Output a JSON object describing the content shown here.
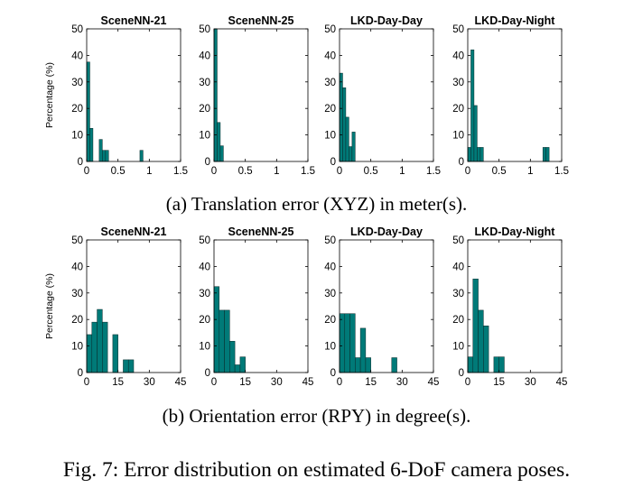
{
  "captions": {
    "a": "(a) Translation error (XYZ) in meter(s).",
    "b": "(b) Orientation error (RPY) in degree(s).",
    "figure": "Fig. 7: Error distribution on estimated 6-DoF camera poses."
  },
  "style": {
    "bar_color": "#007a78"
  },
  "chart_data": [
    {
      "type": "bar",
      "title": "SceneNN-21",
      "ylabel": "Percentage (%)",
      "xlabel": "",
      "xlim": [
        0,
        1.5
      ],
      "ylim": [
        0,
        50
      ],
      "xticks": [
        0,
        0.5,
        1,
        1.5
      ],
      "xtick_labels": [
        "0",
        "0.5",
        "1",
        "1.5"
      ],
      "yticks": [
        0,
        10,
        20,
        30,
        40,
        50
      ],
      "ytick_labels": [
        "0",
        "10",
        "20",
        "30",
        "40",
        "50"
      ],
      "bin_width": 0.05,
      "x": [
        0.025,
        0.075,
        0.225,
        0.275,
        0.325,
        0.875
      ],
      "values": [
        37.5,
        12.5,
        8.3,
        4.2,
        4.2,
        4.2
      ]
    },
    {
      "type": "bar",
      "title": "SceneNN-25",
      "ylabel": "",
      "xlabel": "",
      "xlim": [
        0,
        1.5
      ],
      "ylim": [
        0,
        50
      ],
      "xticks": [
        0,
        0.5,
        1,
        1.5
      ],
      "xtick_labels": [
        "0",
        "0.5",
        "1",
        "1.5"
      ],
      "yticks": [
        0,
        10,
        20,
        30,
        40,
        50
      ],
      "ytick_labels": [
        "0",
        "10",
        "20",
        "30",
        "40",
        "50"
      ],
      "bin_width": 0.05,
      "x": [
        0.025,
        0.075,
        0.125
      ],
      "values": [
        50,
        14.7,
        5.9
      ]
    },
    {
      "type": "bar",
      "title": "LKD-Day-Day",
      "ylabel": "",
      "xlabel": "",
      "xlim": [
        0,
        1.5
      ],
      "ylim": [
        0,
        50
      ],
      "xticks": [
        0,
        0.5,
        1,
        1.5
      ],
      "xtick_labels": [
        "0",
        "0.5",
        "1",
        "1.5"
      ],
      "yticks": [
        0,
        10,
        20,
        30,
        40,
        50
      ],
      "ytick_labels": [
        "0",
        "10",
        "20",
        "30",
        "40",
        "50"
      ],
      "bin_width": 0.05,
      "x": [
        0.025,
        0.075,
        0.125,
        0.175,
        0.225,
        0.275
      ],
      "values": [
        33.3,
        27.8,
        16.7,
        5.6,
        11.1,
        0
      ]
    },
    {
      "type": "bar",
      "title": "LKD-Day-Night",
      "ylabel": "",
      "xlabel": "",
      "xlim": [
        0,
        1.5
      ],
      "ylim": [
        0,
        50
      ],
      "xticks": [
        0,
        0.5,
        1,
        1.5
      ],
      "xtick_labels": [
        "0",
        "0.5",
        "1",
        "1.5"
      ],
      "yticks": [
        0,
        10,
        20,
        30,
        40,
        50
      ],
      "ytick_labels": [
        "0",
        "10",
        "20",
        "30",
        "40",
        "50"
      ],
      "bin_width": 0.05,
      "x": [
        0.025,
        0.075,
        0.125,
        0.175,
        0.225,
        1.225,
        1.275
      ],
      "values": [
        5.3,
        42.1,
        21.1,
        5.3,
        5.3,
        5.3,
        5.3
      ]
    },
    {
      "type": "bar",
      "title": "SceneNN-21",
      "ylabel": "Percentage (%)",
      "xlabel": "",
      "xlim": [
        0,
        45
      ],
      "ylim": [
        0,
        50
      ],
      "xticks": [
        0,
        15,
        30,
        45
      ],
      "xtick_labels": [
        "0",
        "15",
        "30",
        "45"
      ],
      "yticks": [
        0,
        10,
        20,
        30,
        40,
        50
      ],
      "ytick_labels": [
        "0",
        "10",
        "20",
        "30",
        "40",
        "50"
      ],
      "bin_width": 2.5,
      "x": [
        1.25,
        3.75,
        6.25,
        8.75,
        13.75,
        18.75,
        21.25
      ],
      "values": [
        14.3,
        19,
        23.8,
        19,
        14.3,
        4.8,
        4.8
      ]
    },
    {
      "type": "bar",
      "title": "SceneNN-25",
      "ylabel": "",
      "xlabel": "",
      "xlim": [
        0,
        45
      ],
      "ylim": [
        0,
        50
      ],
      "xticks": [
        0,
        15,
        30,
        45
      ],
      "xtick_labels": [
        "0",
        "15",
        "30",
        "45"
      ],
      "yticks": [
        0,
        10,
        20,
        30,
        40,
        50
      ],
      "ytick_labels": [
        "0",
        "10",
        "20",
        "30",
        "40",
        "50"
      ],
      "bin_width": 2.5,
      "x": [
        1.25,
        3.75,
        6.25,
        8.75,
        11.25,
        13.75
      ],
      "values": [
        32.4,
        23.5,
        23.5,
        11.8,
        2.9,
        5.9
      ]
    },
    {
      "type": "bar",
      "title": "LKD-Day-Day",
      "ylabel": "",
      "xlabel": "",
      "xlim": [
        0,
        45
      ],
      "ylim": [
        0,
        50
      ],
      "xticks": [
        0,
        15,
        30,
        45
      ],
      "xtick_labels": [
        "0",
        "15",
        "30",
        "45"
      ],
      "yticks": [
        0,
        10,
        20,
        30,
        40,
        50
      ],
      "ytick_labels": [
        "0",
        "10",
        "20",
        "30",
        "40",
        "50"
      ],
      "bin_width": 2.5,
      "x": [
        1.25,
        3.75,
        6.25,
        8.75,
        11.25,
        13.75,
        26.25
      ],
      "values": [
        22.2,
        22.2,
        22.2,
        5.6,
        16.7,
        5.6,
        5.6
      ]
    },
    {
      "type": "bar",
      "title": "LKD-Day-Night",
      "ylabel": "",
      "xlabel": "",
      "xlim": [
        0,
        45
      ],
      "ylim": [
        0,
        50
      ],
      "xticks": [
        0,
        15,
        30,
        45
      ],
      "xtick_labels": [
        "0",
        "15",
        "30",
        "45"
      ],
      "yticks": [
        0,
        10,
        20,
        30,
        40,
        50
      ],
      "ytick_labels": [
        "0",
        "10",
        "20",
        "30",
        "40",
        "50"
      ],
      "bin_width": 2.5,
      "x": [
        1.25,
        3.75,
        6.25,
        8.75,
        13.75,
        16.25
      ],
      "values": [
        5.9,
        35.3,
        23.5,
        17.6,
        5.9,
        5.9
      ]
    }
  ]
}
